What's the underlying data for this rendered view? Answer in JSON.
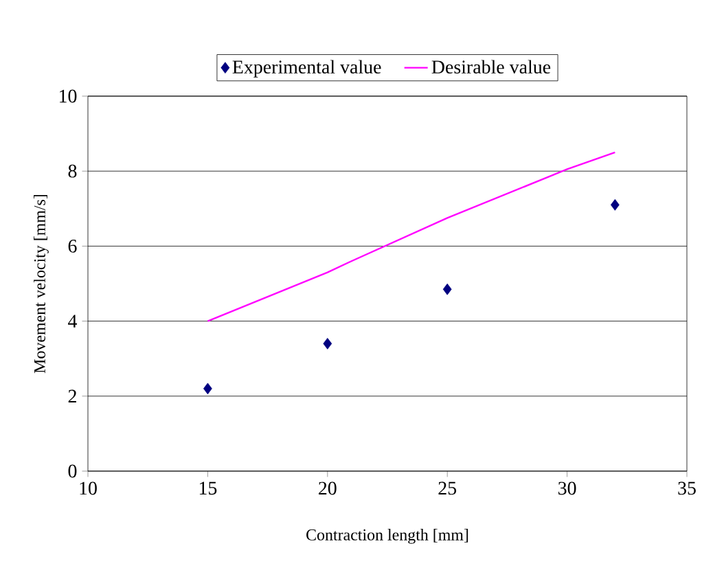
{
  "chart_data": {
    "type": "scatter",
    "xlabel": "Contraction length [mm]",
    "ylabel": "Movement velocity  [mm/s]",
    "series": [
      {
        "name": "Experimental value",
        "color": "#000080",
        "marker": "diamond",
        "x": [
          15,
          20,
          25,
          32
        ],
        "values": [
          2.2,
          3.4,
          4.85,
          7.1
        ]
      },
      {
        "name": "Desirable value",
        "type": "line",
        "color": "#ff00ff",
        "marker": "none",
        "line_style": "solid",
        "x": [
          15,
          20,
          21,
          25,
          30,
          32
        ],
        "values": [
          4.0,
          5.3,
          5.6,
          6.75,
          8.05,
          8.5
        ]
      }
    ],
    "xlim": [
      10,
      35
    ],
    "xticks": [
      10,
      15,
      20,
      25,
      30,
      35
    ],
    "ylim": [
      0,
      10
    ],
    "yticks": [
      0,
      2,
      4,
      6,
      8,
      10
    ],
    "grid": "y",
    "legend": "top"
  }
}
